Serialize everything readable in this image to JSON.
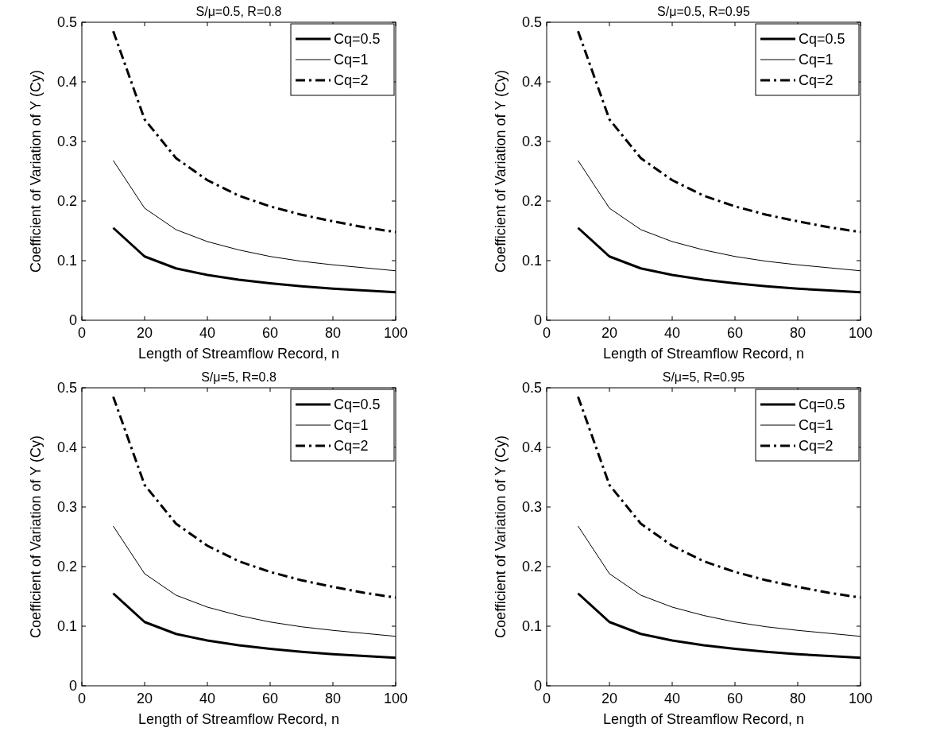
{
  "chart_data": [
    {
      "type": "line",
      "title": "S/μ=0.5, R=0.8",
      "xlabel": "Length of Streamflow Record, n",
      "ylabel": "Coefficient of Variation of Y (Cy)",
      "x": [
        10,
        20,
        30,
        40,
        50,
        60,
        70,
        80,
        90,
        100
      ],
      "xlim": [
        0,
        100
      ],
      "xticks": [
        0,
        20,
        40,
        60,
        80,
        100
      ],
      "ylim": [
        0,
        0.5
      ],
      "yticks": [
        0,
        0.1,
        0.2,
        0.3,
        0.4,
        0.5
      ],
      "grid": false,
      "legend": "top right",
      "marker": "none",
      "series": [
        {
          "name": "Cq=0.5",
          "color": "#000000",
          "line_style": "solid",
          "values": [
            0.155,
            0.107,
            0.087,
            0.076,
            0.068,
            0.062,
            0.057,
            0.053,
            0.05,
            0.047
          ]
        },
        {
          "name": "Cq=1",
          "color": "#000000",
          "line_style": "solid",
          "values": [
            0.268,
            0.188,
            0.152,
            0.132,
            0.118,
            0.107,
            0.099,
            0.093,
            0.088,
            0.083
          ]
        },
        {
          "name": "Cq=2",
          "color": "#000000",
          "line_style": "dashdot",
          "values": [
            0.485,
            0.337,
            0.272,
            0.235,
            0.209,
            0.191,
            0.177,
            0.166,
            0.156,
            0.148
          ]
        }
      ]
    },
    {
      "type": "line",
      "title": "S/μ=0.5, R=0.95",
      "xlabel": "Length of Streamflow Record, n",
      "ylabel": "Coefficient of Variation of Y (Cy)",
      "x": [
        10,
        20,
        30,
        40,
        50,
        60,
        70,
        80,
        90,
        100
      ],
      "xlim": [
        0,
        100
      ],
      "xticks": [
        0,
        20,
        40,
        60,
        80,
        100
      ],
      "ylim": [
        0,
        0.5
      ],
      "yticks": [
        0,
        0.1,
        0.2,
        0.3,
        0.4,
        0.5
      ],
      "grid": false,
      "legend": "top right",
      "marker": "none",
      "series": [
        {
          "name": "Cq=0.5",
          "color": "#000000",
          "line_style": "solid",
          "values": [
            0.155,
            0.107,
            0.087,
            0.076,
            0.068,
            0.062,
            0.057,
            0.053,
            0.05,
            0.047
          ]
        },
        {
          "name": "Cq=1",
          "color": "#000000",
          "line_style": "solid",
          "values": [
            0.268,
            0.188,
            0.152,
            0.132,
            0.118,
            0.107,
            0.099,
            0.093,
            0.088,
            0.083
          ]
        },
        {
          "name": "Cq=2",
          "color": "#000000",
          "line_style": "dashdot",
          "values": [
            0.485,
            0.337,
            0.272,
            0.235,
            0.209,
            0.191,
            0.177,
            0.166,
            0.156,
            0.148
          ]
        }
      ]
    },
    {
      "type": "line",
      "title": "S/μ=5, R=0.8",
      "xlabel": "Length of Streamflow Record, n",
      "ylabel": "Coefficient of Variation of Y (Cy)",
      "x": [
        10,
        20,
        30,
        40,
        50,
        60,
        70,
        80,
        90,
        100
      ],
      "xlim": [
        0,
        100
      ],
      "xticks": [
        0,
        20,
        40,
        60,
        80,
        100
      ],
      "ylim": [
        0,
        0.5
      ],
      "yticks": [
        0,
        0.1,
        0.2,
        0.3,
        0.4,
        0.5
      ],
      "grid": false,
      "legend": "top right",
      "marker": "none",
      "series": [
        {
          "name": "Cq=0.5",
          "color": "#000000",
          "line_style": "solid",
          "values": [
            0.155,
            0.107,
            0.087,
            0.076,
            0.068,
            0.062,
            0.057,
            0.053,
            0.05,
            0.047
          ]
        },
        {
          "name": "Cq=1",
          "color": "#000000",
          "line_style": "solid",
          "values": [
            0.268,
            0.188,
            0.152,
            0.132,
            0.118,
            0.107,
            0.099,
            0.093,
            0.088,
            0.083
          ]
        },
        {
          "name": "Cq=2",
          "color": "#000000",
          "line_style": "dashdot",
          "values": [
            0.485,
            0.337,
            0.272,
            0.235,
            0.209,
            0.191,
            0.177,
            0.166,
            0.156,
            0.148
          ]
        }
      ]
    },
    {
      "type": "line",
      "title": "S/μ=5, R=0.95",
      "xlabel": "Length of Streamflow Record, n",
      "ylabel": "Coefficient of Variation of Y (Cy)",
      "x": [
        10,
        20,
        30,
        40,
        50,
        60,
        70,
        80,
        90,
        100
      ],
      "xlim": [
        0,
        100
      ],
      "xticks": [
        0,
        20,
        40,
        60,
        80,
        100
      ],
      "ylim": [
        0,
        0.5
      ],
      "yticks": [
        0,
        0.1,
        0.2,
        0.3,
        0.4,
        0.5
      ],
      "grid": false,
      "legend": "top right",
      "marker": "none",
      "series": [
        {
          "name": "Cq=0.5",
          "color": "#000000",
          "line_style": "solid",
          "values": [
            0.155,
            0.107,
            0.087,
            0.076,
            0.068,
            0.062,
            0.057,
            0.053,
            0.05,
            0.047
          ]
        },
        {
          "name": "Cq=1",
          "color": "#000000",
          "line_style": "solid",
          "values": [
            0.268,
            0.188,
            0.152,
            0.132,
            0.118,
            0.107,
            0.099,
            0.093,
            0.088,
            0.083
          ]
        },
        {
          "name": "Cq=2",
          "color": "#000000",
          "line_style": "dashdot",
          "values": [
            0.485,
            0.337,
            0.272,
            0.235,
            0.209,
            0.191,
            0.177,
            0.166,
            0.156,
            0.148
          ]
        }
      ]
    }
  ]
}
